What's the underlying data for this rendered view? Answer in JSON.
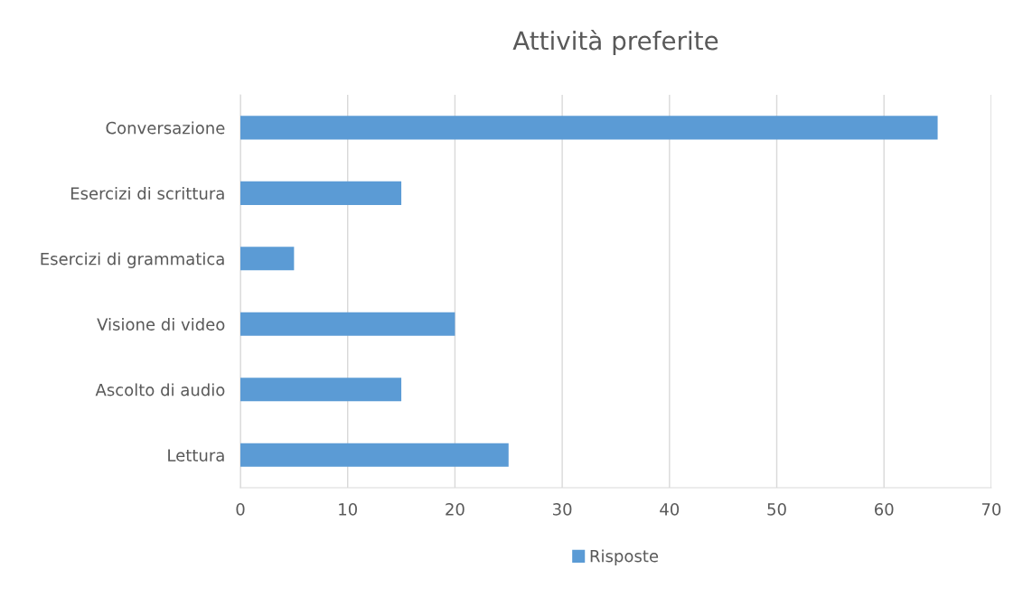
{
  "chart_data": {
    "type": "bar",
    "orientation": "horizontal",
    "title": "Attività preferite",
    "categories": [
      "Conversazione",
      "Esercizi di scrittura",
      "Esercizi di grammatica",
      "Visione di video",
      "Ascolto di audio",
      "Lettura"
    ],
    "series": [
      {
        "name": "Risposte",
        "color": "#5b9bd5",
        "values": [
          65,
          15,
          5,
          20,
          15,
          25
        ]
      }
    ],
    "xlim": [
      0,
      70
    ],
    "xticks": [
      0,
      10,
      20,
      30,
      40,
      50,
      60,
      70
    ],
    "grid": "x",
    "legend": "bottom"
  }
}
